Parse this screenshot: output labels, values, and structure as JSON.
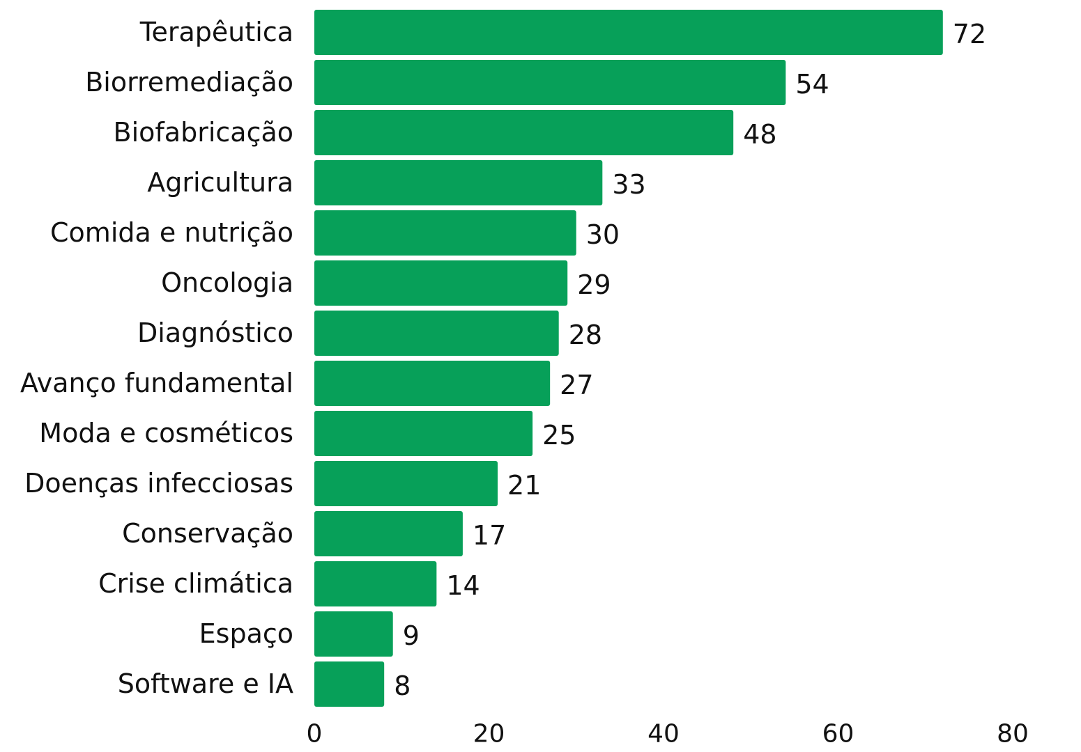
{
  "chart_data": {
    "type": "bar",
    "orientation": "horizontal",
    "title": "",
    "xlabel": "",
    "ylabel": "",
    "categories": [
      "Terapêutica",
      "Biorremediação",
      "Biofabricação",
      "Agricultura",
      "Comida e nutrição",
      "Oncologia",
      "Diagnóstico",
      "Avanço fundamental",
      "Moda e cosméticos",
      "Doenças infecciosas",
      "Conservação",
      "Crise climática",
      "Espaço",
      "Software e IA"
    ],
    "values": [
      72,
      54,
      48,
      33,
      30,
      29,
      28,
      27,
      25,
      21,
      17,
      14,
      9,
      8
    ],
    "xlim": [
      0,
      80
    ],
    "xticks": [
      0,
      20,
      40,
      60,
      80
    ],
    "grid": false,
    "bar_color": "#07a059",
    "data_labels": true
  }
}
